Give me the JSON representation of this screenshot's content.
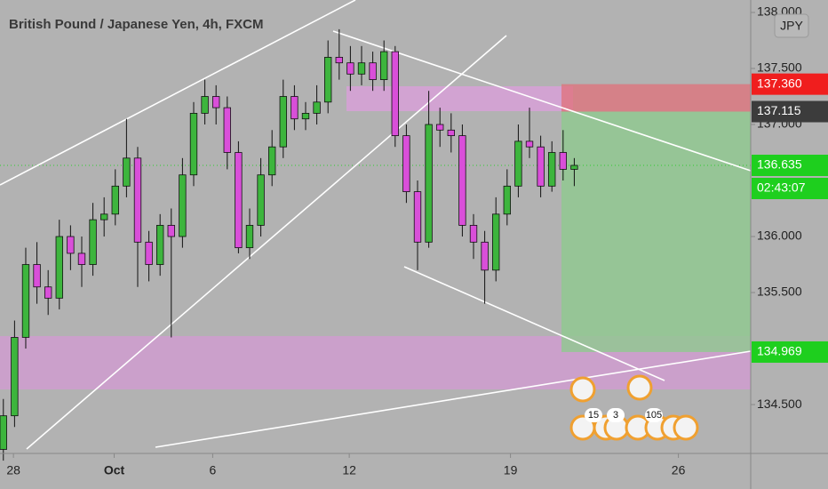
{
  "chart_data": {
    "type": "candlestick",
    "title": "British Pound / Japanese Yen, 4h, FXCM",
    "currency": "JPY",
    "up_color": "#3db53d",
    "down_color": "#d94fd9",
    "xlim": [
      -0.3,
      66.76
    ],
    "ylim": [
      134.064,
      138.111
    ],
    "xticks": [
      {
        "value": 0.9,
        "label": "28"
      },
      {
        "value": 9.9,
        "label": "Oct"
      },
      {
        "value": 18.7,
        "label": "6"
      },
      {
        "value": 30.9,
        "label": "12"
      },
      {
        "value": 45.3,
        "label": "19"
      },
      {
        "value": 60.3,
        "label": "26"
      }
    ],
    "yticks": [
      {
        "value": 134.5,
        "label": "134.500"
      },
      {
        "value": 135.5,
        "label": "135.500"
      },
      {
        "value": 136,
        "label": "136.000"
      },
      {
        "value": 137,
        "label": "137.000"
      },
      {
        "value": 137.5,
        "label": "137.500"
      },
      {
        "value": 138,
        "label": "138.000"
      }
    ],
    "open": [
      134.1,
      134.4,
      135.1,
      135.75,
      135.55,
      135.45,
      136.0,
      135.85,
      135.75,
      136.15,
      136.2,
      136.45,
      136.7,
      135.95,
      135.75,
      136.1,
      136.0,
      136.55,
      137.1,
      137.25,
      137.15,
      136.75,
      135.9,
      136.1,
      136.55,
      136.8,
      137.25,
      137.05,
      137.1,
      137.2,
      137.6,
      137.55,
      137.45,
      137.55,
      137.4,
      137.65,
      136.9,
      136.4,
      135.95,
      137.0,
      136.95,
      136.9,
      136.1,
      135.95,
      135.7,
      136.2,
      136.45,
      136.85,
      136.8,
      136.45,
      136.75,
      136.6
    ],
    "high": [
      134.55,
      135.25,
      135.9,
      135.95,
      135.7,
      136.15,
      136.1,
      136.0,
      136.3,
      136.35,
      136.6,
      137.05,
      136.8,
      136.05,
      136.2,
      136.25,
      136.7,
      137.2,
      137.4,
      137.35,
      137.25,
      136.85,
      136.25,
      136.7,
      136.95,
      137.4,
      137.35,
      137.2,
      137.35,
      137.75,
      137.85,
      137.7,
      137.7,
      137.65,
      137.75,
      137.7,
      137.0,
      136.5,
      137.3,
      137.15,
      137.1,
      137.0,
      136.2,
      136.05,
      136.35,
      136.6,
      137.0,
      137.15,
      136.9,
      136.85,
      136.95,
      136.7
    ],
    "low": [
      134.0,
      134.3,
      135.0,
      135.4,
      135.3,
      135.35,
      135.7,
      135.55,
      135.65,
      136.0,
      136.1,
      136.35,
      135.55,
      135.6,
      135.65,
      135.1,
      135.9,
      136.45,
      137.0,
      137.0,
      136.6,
      135.85,
      135.8,
      136.0,
      136.45,
      136.7,
      136.95,
      136.95,
      137.0,
      137.1,
      137.4,
      137.3,
      137.35,
      137.3,
      137.3,
      136.8,
      136.3,
      135.7,
      135.9,
      136.8,
      136.75,
      136.0,
      135.8,
      135.4,
      135.6,
      136.1,
      136.35,
      136.7,
      136.35,
      136.4,
      136.5,
      136.45
    ],
    "close": [
      134.4,
      135.1,
      135.75,
      135.55,
      135.45,
      136.0,
      135.85,
      135.75,
      136.15,
      136.2,
      136.45,
      136.7,
      135.95,
      135.75,
      136.1,
      136.0,
      136.55,
      137.1,
      137.25,
      137.15,
      136.75,
      135.9,
      136.1,
      136.55,
      136.8,
      137.25,
      137.05,
      137.1,
      137.2,
      137.6,
      137.55,
      137.45,
      137.55,
      137.4,
      137.65,
      136.9,
      136.4,
      135.95,
      137.0,
      136.95,
      136.9,
      136.1,
      135.95,
      135.7,
      136.2,
      136.45,
      136.85,
      136.8,
      136.45,
      136.75,
      136.6,
      136.635
    ],
    "price_labels": [
      {
        "value": 137.36,
        "label": "137.360",
        "color": "#f01e1e"
      },
      {
        "value": 137.115,
        "label": "137.115",
        "color": "#3c3c3c"
      },
      {
        "value": 136.635,
        "label": "136.635",
        "color": "#1ecf1e"
      },
      {
        "value": 134.969,
        "label": "134.969",
        "color": "#1ecf1e"
      }
    ],
    "countdown": "02:43:07",
    "event_counts": [
      "15",
      "3",
      "105"
    ]
  }
}
